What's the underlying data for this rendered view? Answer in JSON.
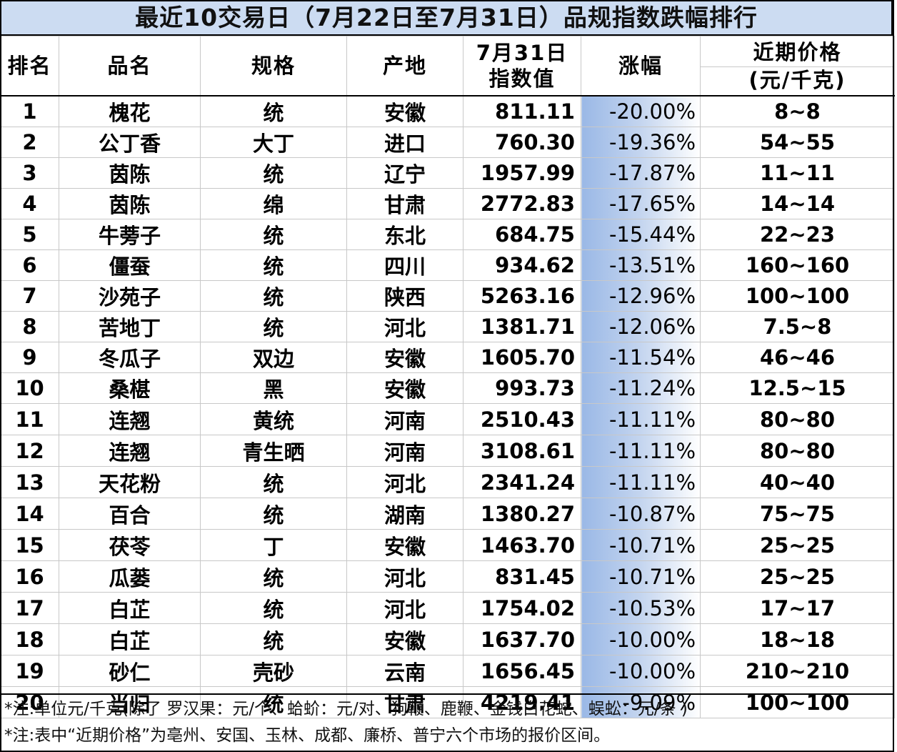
{
  "title": "最近10交易日（7月22日至7月31日）品规指数跌幅排行",
  "columns": {
    "rank": "排名",
    "name": "品名",
    "spec": "规格",
    "origin": "产地",
    "index_line1": "7月31日",
    "index_line2": "指数值",
    "change": "涨幅",
    "price_line1": "近期价格",
    "price_line2": "(元/千克)"
  },
  "rows": [
    {
      "rank": "1",
      "name": "槐花",
      "spec": "统",
      "origin": "安徽",
      "index": "811.11",
      "change": "-20.00%",
      "price": "8~8"
    },
    {
      "rank": "2",
      "name": "公丁香",
      "spec": "大丁",
      "origin": "进口",
      "index": "760.30",
      "change": "-19.36%",
      "price": "54~55"
    },
    {
      "rank": "3",
      "name": "茵陈",
      "spec": "统",
      "origin": "辽宁",
      "index": "1957.99",
      "change": "-17.87%",
      "price": "11~11"
    },
    {
      "rank": "4",
      "name": "茵陈",
      "spec": "绵",
      "origin": "甘肃",
      "index": "2772.83",
      "change": "-17.65%",
      "price": "14~14"
    },
    {
      "rank": "5",
      "name": "牛蒡子",
      "spec": "统",
      "origin": "东北",
      "index": "684.75",
      "change": "-15.44%",
      "price": "22~23"
    },
    {
      "rank": "6",
      "name": "僵蚕",
      "spec": "统",
      "origin": "四川",
      "index": "934.62",
      "change": "-13.51%",
      "price": "160~160"
    },
    {
      "rank": "7",
      "name": "沙苑子",
      "spec": "统",
      "origin": "陕西",
      "index": "5263.16",
      "change": "-12.96%",
      "price": "100~100"
    },
    {
      "rank": "8",
      "name": "苦地丁",
      "spec": "统",
      "origin": "河北",
      "index": "1381.71",
      "change": "-12.06%",
      "price": "7.5~8"
    },
    {
      "rank": "9",
      "name": "冬瓜子",
      "spec": "双边",
      "origin": "安徽",
      "index": "1605.70",
      "change": "-11.54%",
      "price": "46~46"
    },
    {
      "rank": "10",
      "name": "桑椹",
      "spec": "黑",
      "origin": "安徽",
      "index": "993.73",
      "change": "-11.24%",
      "price": "12.5~15"
    },
    {
      "rank": "11",
      "name": "连翘",
      "spec": "黄统",
      "origin": "河南",
      "index": "2510.43",
      "change": "-11.11%",
      "price": "80~80"
    },
    {
      "rank": "12",
      "name": "连翘",
      "spec": "青生晒",
      "origin": "河南",
      "index": "3108.61",
      "change": "-11.11%",
      "price": "80~80"
    },
    {
      "rank": "13",
      "name": "天花粉",
      "spec": "统",
      "origin": "河北",
      "index": "2341.24",
      "change": "-11.11%",
      "price": "40~40"
    },
    {
      "rank": "14",
      "name": "百合",
      "spec": "统",
      "origin": "湖南",
      "index": "1380.27",
      "change": "-10.87%",
      "price": "75~75"
    },
    {
      "rank": "15",
      "name": "茯苓",
      "spec": "丁",
      "origin": "安徽",
      "index": "1463.70",
      "change": "-10.71%",
      "price": "25~25"
    },
    {
      "rank": "16",
      "name": "瓜蒌",
      "spec": "统",
      "origin": "河北",
      "index": "831.45",
      "change": "-10.71%",
      "price": "25~25"
    },
    {
      "rank": "17",
      "name": "白芷",
      "spec": "统",
      "origin": "河北",
      "index": "1754.02",
      "change": "-10.53%",
      "price": "17~17"
    },
    {
      "rank": "18",
      "name": "白芷",
      "spec": "统",
      "origin": "安徽",
      "index": "1637.70",
      "change": "-10.00%",
      "price": "18~18"
    },
    {
      "rank": "19",
      "name": "砂仁",
      "spec": "壳砂",
      "origin": "云南",
      "index": "1656.45",
      "change": "-10.00%",
      "price": "210~210"
    },
    {
      "rank": "20",
      "name": "当归",
      "spec": "统",
      "origin": "甘肃",
      "index": "4219.41",
      "change": "-9.09%",
      "price": "100~100"
    }
  ],
  "notes": [
    "*注:单位元/千克(除了 罗汉果：元/个、蛤蚧：元/对、狗鞭、鹿鞭、金钱白花蛇、蜈蚣：元/条 )",
    "*注:表中“近期价格”为亳州、安国、玉林、成都、廉桥、普宁六个市场的报价区间。"
  ],
  "colors": {
    "title_bg": "#ccdcf2",
    "change_gradient_start": "#9ab8e6",
    "border": "#000000"
  }
}
